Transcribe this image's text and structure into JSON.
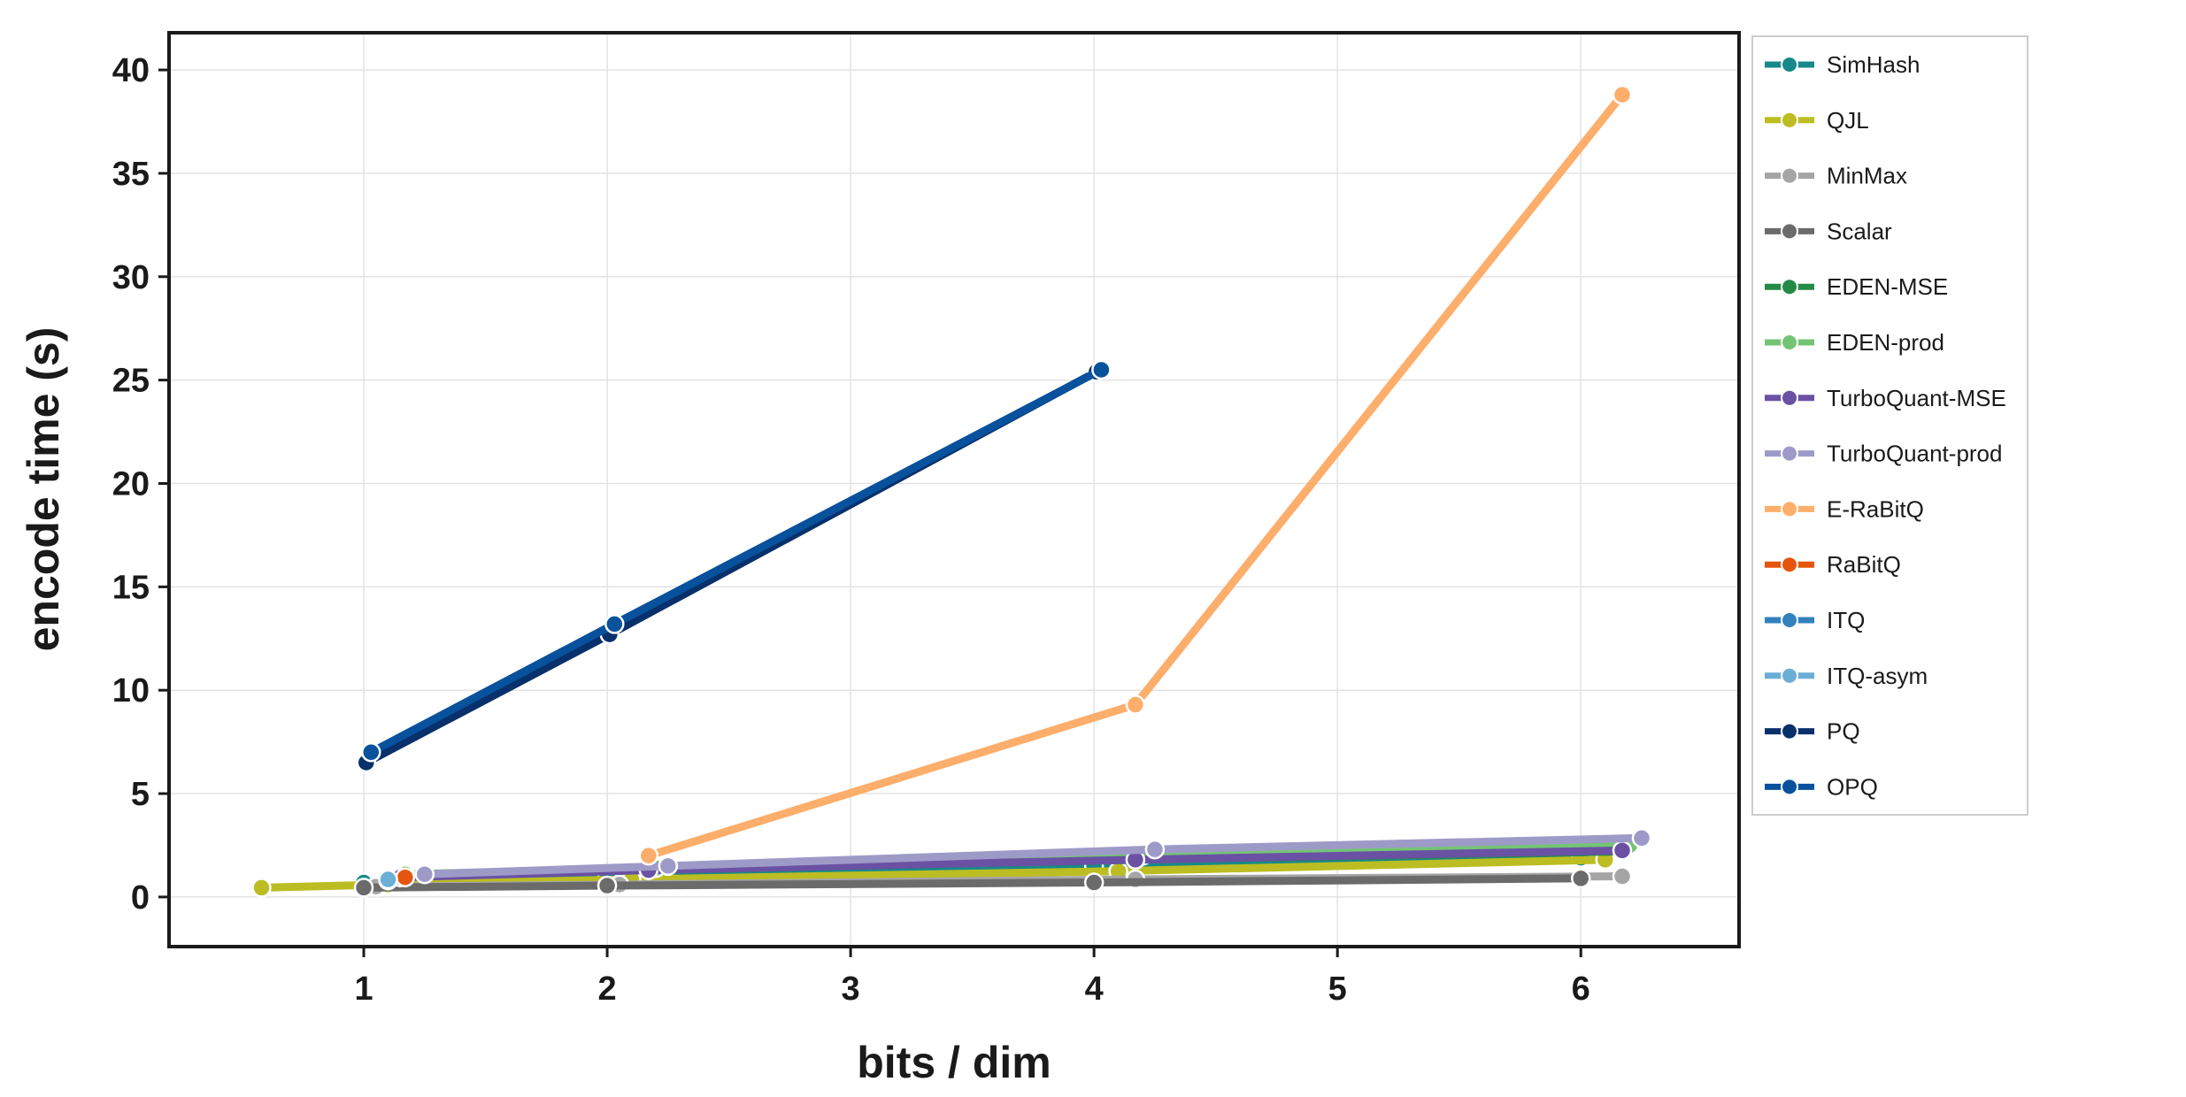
{
  "chart_data": {
    "type": "line",
    "title": "",
    "xlabel": "bits / dim",
    "ylabel": "encode time (s)",
    "xlim": [
      0.2,
      6.65
    ],
    "ylim": [
      -2.4,
      41.8
    ],
    "xticks": [
      1,
      2,
      3,
      4,
      5,
      6
    ],
    "yticks": [
      0,
      5,
      10,
      15,
      20,
      25,
      30,
      35,
      40
    ],
    "grid": true,
    "legend_position": "outside-right",
    "series": [
      {
        "name": "SimHash",
        "color": "#17898a",
        "x": [
          1,
          2,
          4,
          6
        ],
        "y": [
          0.7,
          1.0,
          1.5,
          1.9
        ]
      },
      {
        "name": "QJL",
        "color": "#bcbd22",
        "x": [
          0.58,
          1.1,
          2.1,
          4.1,
          6.1
        ],
        "y": [
          0.45,
          0.6,
          0.85,
          1.25,
          1.8
        ]
      },
      {
        "name": "MinMax",
        "color": "#a5a5a5",
        "x": [
          1.05,
          2.05,
          4.17,
          6.17
        ],
        "y": [
          0.5,
          0.6,
          0.85,
          1.0
        ]
      },
      {
        "name": "Scalar",
        "color": "#6b6b6b",
        "x": [
          1,
          2,
          4,
          6
        ],
        "y": [
          0.45,
          0.55,
          0.7,
          0.9
        ]
      },
      {
        "name": "EDEN-MSE",
        "color": "#238b45",
        "x": [
          1.15,
          2.17,
          4.17,
          6.17
        ],
        "y": [
          1.0,
          1.3,
          1.8,
          2.2
        ]
      },
      {
        "name": "EDEN-prod",
        "color": "#74c476",
        "x": [
          1.17,
          2.2,
          4.2,
          6.2
        ],
        "y": [
          1.1,
          1.4,
          2.0,
          2.5
        ]
      },
      {
        "name": "TurboQuant-MSE",
        "color": "#6a51a3",
        "x": [
          1.15,
          2.17,
          4.17,
          6.17
        ],
        "y": [
          0.95,
          1.3,
          1.8,
          2.25
        ]
      },
      {
        "name": "TurboQuant-prod",
        "color": "#9e9ac8",
        "x": [
          1.25,
          2.25,
          4.25,
          6.25
        ],
        "y": [
          1.1,
          1.5,
          2.3,
          2.85
        ]
      },
      {
        "name": "E-RaBitQ",
        "color": "#fdae6b",
        "x": [
          2.17,
          4.17,
          6.17
        ],
        "y": [
          2.0,
          9.3,
          38.8
        ]
      },
      {
        "name": "RaBitQ",
        "color": "#e6550d",
        "x": [
          1.17
        ],
        "y": [
          0.95
        ]
      },
      {
        "name": "ITQ",
        "color": "#3182bd",
        "x": [
          1.1
        ],
        "y": [
          0.8
        ]
      },
      {
        "name": "ITQ-asym",
        "color": "#6baed6",
        "x": [
          1.1
        ],
        "y": [
          0.85
        ]
      },
      {
        "name": "PQ",
        "color": "#08306b",
        "x": [
          1.01,
          2.01,
          4.01
        ],
        "y": [
          6.5,
          12.7,
          25.4
        ]
      },
      {
        "name": "OPQ",
        "color": "#08519c",
        "x": [
          1.03,
          2.03,
          4.03
        ],
        "y": [
          7.0,
          13.2,
          25.5
        ]
      }
    ]
  }
}
